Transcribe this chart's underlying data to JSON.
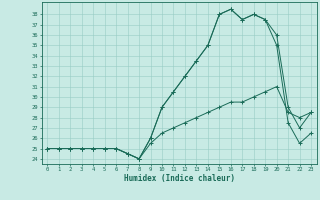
{
  "title": "",
  "xlabel": "Humidex (Indice chaleur)",
  "bg_color": "#c8eae4",
  "line_color": "#1a6b58",
  "grid_color": "#99ccc4",
  "series1_x": [
    0,
    1,
    2,
    3,
    4,
    5,
    6,
    7,
    8,
    9,
    10,
    11,
    12,
    13,
    14,
    15,
    16,
    17,
    18,
    19,
    20,
    21,
    22,
    23
  ],
  "series1_y": [
    25,
    25,
    25,
    25,
    25,
    25,
    25,
    24.5,
    24,
    26,
    29,
    30.5,
    32,
    33.5,
    35,
    38,
    38.5,
    37.5,
    38,
    37.5,
    36,
    29,
    27,
    28.5
  ],
  "series2_x": [
    0,
    1,
    2,
    3,
    4,
    5,
    6,
    7,
    8,
    9,
    10,
    11,
    12,
    13,
    14,
    15,
    16,
    17,
    18,
    19,
    20,
    21,
    22,
    23
  ],
  "series2_y": [
    25,
    25,
    25,
    25,
    25,
    25,
    25,
    24.5,
    24,
    26,
    29,
    30.5,
    32,
    33.5,
    35,
    38,
    38.5,
    37.5,
    38,
    37.5,
    35,
    27.5,
    25.5,
    26.5
  ],
  "series3_x": [
    0,
    1,
    2,
    3,
    4,
    5,
    6,
    7,
    8,
    9,
    10,
    11,
    12,
    13,
    14,
    15,
    16,
    17,
    18,
    19,
    20,
    21,
    22,
    23
  ],
  "series3_y": [
    25,
    25,
    25,
    25,
    25,
    25,
    25,
    24.5,
    24,
    25.5,
    26.5,
    27,
    27.5,
    28,
    28.5,
    29,
    29.5,
    29.5,
    30,
    30.5,
    31,
    28.5,
    28,
    28.5
  ],
  "yticks": [
    24,
    25,
    26,
    27,
    28,
    29,
    30,
    31,
    32,
    33,
    34,
    35,
    36,
    37,
    38
  ],
  "xtick_labels": [
    "0",
    "1",
    "2",
    "3",
    "4",
    "5",
    "6",
    "7",
    "8",
    "9",
    "10",
    "11",
    "12",
    "13",
    "14",
    "15",
    "16",
    "17",
    "18",
    "19",
    "20",
    "21",
    "22",
    "23"
  ],
  "xlim": [
    -0.5,
    23.5
  ],
  "ylim": [
    23.5,
    39.2
  ]
}
